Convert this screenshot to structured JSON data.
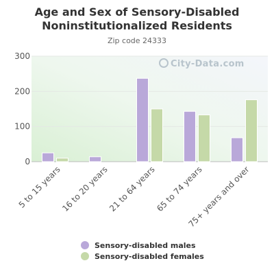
{
  "chart_data": {
    "type": "bar",
    "title": "Age and Sex of Sensory-Disabled Noninstitutionalized Residents",
    "subtitle": "Zip code 24333",
    "categories": [
      "5 to 15 years",
      "16 to 20 years",
      "21 to 64 years",
      "65 to 74 years",
      "75+ years and over"
    ],
    "series": [
      {
        "name": "Sensory-disabled males",
        "color": "#b9a8d9",
        "values": [
          25,
          14,
          237,
          143,
          68
        ]
      },
      {
        "name": "Sensory-disabled females",
        "color": "#c5d9a8",
        "values": [
          10,
          0,
          150,
          133,
          176
        ]
      }
    ],
    "ylim": [
      0,
      300
    ],
    "yticks": [
      0,
      100,
      200,
      300
    ],
    "grid": true,
    "legend": "bottom"
  },
  "watermark": "City-Data.com"
}
